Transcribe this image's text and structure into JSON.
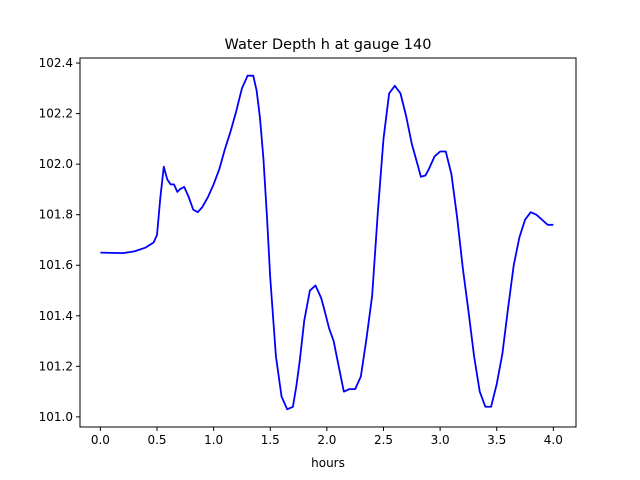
{
  "chart_data": {
    "type": "line",
    "title": "Water Depth h at gauge 140",
    "xlabel": "hours",
    "ylabel": "",
    "xlim": [
      -0.18,
      4.2
    ],
    "ylim": [
      100.96,
      102.42
    ],
    "xticks": [
      0.0,
      0.5,
      1.0,
      1.5,
      2.0,
      2.5,
      3.0,
      3.5,
      4.0
    ],
    "xtick_labels": [
      "0.0",
      "0.5",
      "1.0",
      "1.5",
      "2.0",
      "2.5",
      "3.0",
      "3.5",
      "4.0"
    ],
    "yticks": [
      101.0,
      101.2,
      101.4,
      101.6,
      101.8,
      102.0,
      102.2,
      102.4
    ],
    "ytick_labels": [
      "101.0",
      "101.2",
      "101.4",
      "101.6",
      "101.8",
      "102.0",
      "102.2",
      "102.4"
    ],
    "grid": false,
    "series": [
      {
        "color": "#0000ff",
        "x": [
          0.0,
          0.1,
          0.2,
          0.3,
          0.4,
          0.47,
          0.5,
          0.53,
          0.56,
          0.59,
          0.62,
          0.65,
          0.68,
          0.7,
          0.74,
          0.78,
          0.82,
          0.86,
          0.9,
          0.95,
          1.0,
          1.05,
          1.1,
          1.15,
          1.2,
          1.25,
          1.3,
          1.35,
          1.38,
          1.41,
          1.44,
          1.47,
          1.5,
          1.55,
          1.6,
          1.65,
          1.7,
          1.73,
          1.76,
          1.8,
          1.85,
          1.9,
          1.95,
          1.98,
          2.02,
          2.06,
          2.1,
          2.15,
          2.2,
          2.25,
          2.3,
          2.35,
          2.4,
          2.45,
          2.5,
          2.55,
          2.6,
          2.65,
          2.7,
          2.75,
          2.8,
          2.83,
          2.87,
          2.9,
          2.95,
          3.0,
          3.05,
          3.1,
          3.15,
          3.2,
          3.25,
          3.3,
          3.35,
          3.4,
          3.45,
          3.5,
          3.55,
          3.6,
          3.65,
          3.7,
          3.75,
          3.8,
          3.85,
          3.9,
          3.95,
          4.0
        ],
        "y": [
          101.65,
          101.649,
          101.648,
          101.655,
          101.67,
          101.69,
          101.72,
          101.87,
          101.99,
          101.94,
          101.92,
          101.92,
          101.89,
          101.9,
          101.91,
          101.87,
          101.82,
          101.81,
          101.83,
          101.87,
          101.92,
          101.98,
          102.06,
          102.13,
          102.21,
          102.3,
          102.35,
          102.35,
          102.29,
          102.18,
          102.02,
          101.8,
          101.55,
          101.24,
          101.08,
          101.03,
          101.04,
          101.12,
          101.22,
          101.38,
          101.5,
          101.52,
          101.47,
          101.42,
          101.35,
          101.3,
          101.21,
          101.1,
          101.11,
          101.11,
          101.16,
          101.31,
          101.48,
          101.81,
          102.1,
          102.28,
          102.31,
          102.28,
          102.19,
          102.08,
          102.0,
          101.95,
          101.955,
          101.98,
          102.03,
          102.05,
          102.05,
          101.96,
          101.79,
          101.59,
          101.42,
          101.24,
          101.1,
          101.04,
          101.04,
          101.13,
          101.25,
          101.43,
          101.6,
          101.71,
          101.78,
          101.81,
          101.8,
          101.78,
          101.76,
          101.76
        ]
      }
    ]
  }
}
